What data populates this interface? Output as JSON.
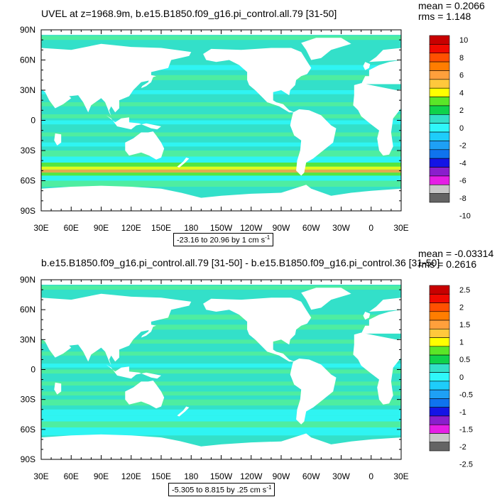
{
  "colors": {
    "land": "#ffffff",
    "ocean_base": "#33e0c9",
    "ocean_alt": "#53ee9a",
    "ocean_light": "#2ff7f9",
    "palette": [
      "#646464",
      "#c8c8c8",
      "#e51ee5",
      "#8a1ecd",
      "#1414e6",
      "#0f73ee",
      "#1ea0f5",
      "#1ecdfa",
      "#2ff7f9",
      "#33e0c9",
      "#0fd24b",
      "#5ae628",
      "#ffff00",
      "#ffc83c",
      "#ffa03c",
      "#ff7d00",
      "#ff5000",
      "#f00a00",
      "#c80000"
    ]
  },
  "panels": [
    {
      "id": "top",
      "title": "UVEL at z=1968.9m, b.e15.B1850.f09_g16.pi_control.all.79 [31-50]",
      "mean": "mean = 0.2066",
      "rms": "rms = 1.148",
      "range_text": "-23.16 to 20.96 by 1 cm s",
      "range_unit_sup": "-1",
      "colorbar_labels": [
        "10",
        "8",
        "6",
        "4",
        "2",
        "0",
        "-2",
        "-4",
        "-6",
        "-8",
        "-10"
      ]
    },
    {
      "id": "bottom",
      "title": "b.e15.B1850.f09_g16.pi_control.all.79 [31-50] - b.e15.B1850.f09_g16.pi_control.36 [31-50]",
      "mean": "mean = -0.03314",
      "rms": "rms = 0.2616",
      "range_text": "-5.305 to 8.815 by .25 cm s",
      "range_unit_sup": "-1",
      "colorbar_labels": [
        "2.5",
        "2",
        "1.5",
        "1",
        "0.5",
        "0",
        "-0.5",
        "-1",
        "-1.5",
        "-2",
        "-2.5"
      ]
    }
  ],
  "map": {
    "lat_labels": [
      "90N",
      "60N",
      "30N",
      "0",
      "30S",
      "60S",
      "90S"
    ],
    "lon_labels": [
      "30E",
      "60E",
      "90E",
      "120E",
      "150E",
      "180",
      "150W",
      "120W",
      "90W",
      "60W",
      "30W",
      "0",
      "30E"
    ]
  }
}
